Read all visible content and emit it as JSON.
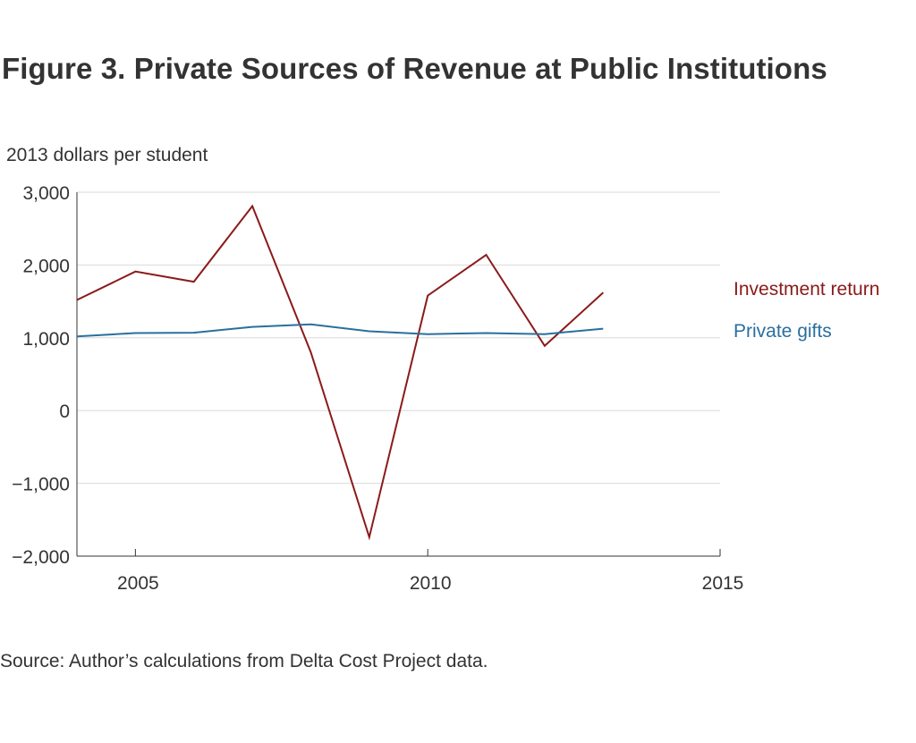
{
  "header": {
    "title": "Figure 3. Private Sources of Revenue at Public Institutions"
  },
  "footer": {
    "source": "Source: Author’s calculations from Delta Cost Project data."
  },
  "colors": {
    "investment_return": "#8b1a1a",
    "private_gifts": "#2a6f9e",
    "grid": "#d9d9d9",
    "axis": "#333333",
    "text": "#333333"
  },
  "chart_data": {
    "type": "line",
    "title": "Figure 3. Private Sources of Revenue at Public Institutions",
    "xlabel": "",
    "ylabel": "2013 dollars per student",
    "xlim": [
      2004,
      2015
    ],
    "ylim": [
      -2000,
      3000
    ],
    "x_ticks": [
      2005,
      2010,
      2015
    ],
    "x_tick_labels": [
      "2005",
      "2010",
      "2015"
    ],
    "y_ticks": [
      -2000,
      -1000,
      0,
      1000,
      2000,
      3000
    ],
    "y_tick_labels": [
      "−2,000",
      "−1,000",
      "0",
      "1,000",
      "2,000",
      "3,000"
    ],
    "grid": true,
    "legend": "right, labels placed next to line ends",
    "x": [
      2004,
      2005,
      2006,
      2007,
      2008,
      2009,
      2010,
      2011,
      2012,
      2013
    ],
    "series": [
      {
        "name": "Investment return",
        "color": "#8b1a1a",
        "values": [
          1520,
          1910,
          1770,
          2810,
          800,
          -1740,
          1580,
          2140,
          890,
          1620
        ]
      },
      {
        "name": "Private gifts",
        "color": "#2a6f9e",
        "values": [
          1020,
          1065,
          1070,
          1150,
          1185,
          1090,
          1050,
          1065,
          1050,
          1125
        ]
      }
    ]
  }
}
